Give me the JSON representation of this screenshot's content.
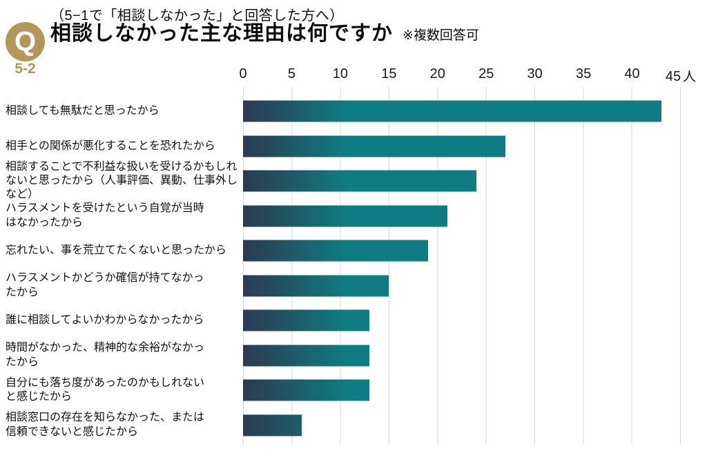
{
  "header": {
    "badge_letter": "Q",
    "badge_number": "5-2",
    "condition_note": "（5−1で「相談しなかった」と回答した方へ）",
    "title": "相談しなかった主な理由は何ですか",
    "note": "※複数回答可"
  },
  "colors": {
    "accent_gold": "#b3965c",
    "bar_gradient_start": "#2d3a4f",
    "bar_gradient_end": "#0e7c82",
    "gridline": "#d7d7d7"
  },
  "chart_data": {
    "type": "bar",
    "orientation": "horizontal",
    "unit": "人",
    "xlim": [
      0,
      45
    ],
    "ticks": [
      0,
      5,
      10,
      15,
      20,
      25,
      30,
      35,
      40,
      45
    ],
    "grid": true,
    "axis_position": "top",
    "categories": [
      "相談しても無駄だと思ったから",
      "相手との関係が悪化することを恐れたから",
      "相談することで不利益な扱いを受けるかもしれ\nないと思ったから（人事評価、異動、仕事外しなど）",
      "ハラスメントを受けたという自覚が当時\nはなかったから",
      "忘れたい、事を荒立てたくないと思ったから",
      "ハラスメントかどうか確信が持てなかっ\nたから",
      "誰に相談してよいかわからなかったから",
      "時間がなかった、精神的な余裕がなかっ\nたから",
      "自分にも落ち度があったのかもしれない\nと感じたから",
      "相談窓口の存在を知らなかった、または\n信頼できないと感じたから"
    ],
    "values": [
      43,
      27,
      24,
      21,
      19,
      15,
      13,
      13,
      13,
      6
    ]
  }
}
